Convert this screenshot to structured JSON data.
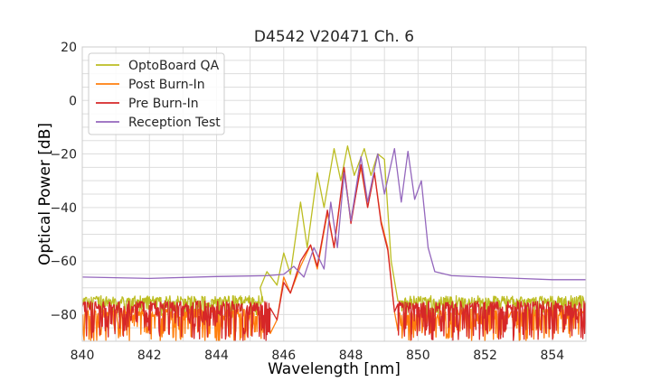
{
  "chart_data": {
    "type": "line",
    "title": "D4542 V20471 Ch. 6",
    "xlabel": "Wavelength [nm]",
    "ylabel": "Optical Power [dB]",
    "xlim": [
      840,
      855
    ],
    "ylim": [
      -90,
      20
    ],
    "xticks": [
      840,
      842,
      844,
      846,
      848,
      850,
      852,
      854
    ],
    "yticks": [
      20,
      0,
      -20,
      -40,
      -60,
      -80
    ],
    "xtick_labels": [
      "840",
      "842",
      "844",
      "846",
      "848",
      "850",
      "852",
      "854"
    ],
    "ytick_labels": [
      "20",
      "0",
      "−20",
      "−40",
      "−60",
      "−80"
    ],
    "grid": true,
    "legend_position": "top-left",
    "series": [
      {
        "name": "OptoBoard QA",
        "color": "#bcbd22",
        "noise_floor": [
          -81,
          -73
        ],
        "noise_range": [
          840,
          845.4
        ],
        "noise_after": [
          849.5,
          855
        ],
        "points": [
          [
            845.3,
            -70
          ],
          [
            845.5,
            -64
          ],
          [
            845.8,
            -69
          ],
          [
            846.0,
            -57
          ],
          [
            846.2,
            -65
          ],
          [
            846.5,
            -38
          ],
          [
            846.7,
            -55
          ],
          [
            847.0,
            -27
          ],
          [
            847.2,
            -40
          ],
          [
            847.5,
            -18
          ],
          [
            847.7,
            -30
          ],
          [
            847.9,
            -17
          ],
          [
            848.1,
            -28
          ],
          [
            848.4,
            -18
          ],
          [
            848.6,
            -28
          ],
          [
            848.8,
            -20
          ],
          [
            849.0,
            -22
          ],
          [
            849.2,
            -60
          ],
          [
            849.4,
            -75
          ]
        ]
      },
      {
        "name": "Post Burn-In",
        "color": "#ff7f0e",
        "noise_floor": [
          -90,
          -78
        ],
        "noise_range": [
          840,
          845.6
        ],
        "noise_after": [
          849.4,
          855
        ],
        "points": [
          [
            845.8,
            -82
          ],
          [
            846.0,
            -66
          ],
          [
            846.2,
            -72
          ],
          [
            846.5,
            -62
          ],
          [
            846.8,
            -54
          ],
          [
            847.0,
            -63
          ],
          [
            847.3,
            -42
          ],
          [
            847.5,
            -55
          ],
          [
            847.8,
            -26
          ],
          [
            848.0,
            -45
          ],
          [
            848.3,
            -25
          ],
          [
            848.5,
            -40
          ],
          [
            848.7,
            -27
          ],
          [
            848.9,
            -45
          ],
          [
            849.1,
            -55
          ],
          [
            849.3,
            -79
          ]
        ]
      },
      {
        "name": "Pre Burn-In",
        "color": "#d62728",
        "noise_floor": [
          -90,
          -75
        ],
        "noise_range": [
          840,
          845.6
        ],
        "noise_after": [
          849.4,
          855
        ],
        "points": [
          [
            845.8,
            -82
          ],
          [
            846.0,
            -68
          ],
          [
            846.2,
            -72
          ],
          [
            846.5,
            -60
          ],
          [
            846.8,
            -54
          ],
          [
            847.0,
            -62
          ],
          [
            847.3,
            -41
          ],
          [
            847.5,
            -55
          ],
          [
            847.8,
            -25
          ],
          [
            848.0,
            -46
          ],
          [
            848.3,
            -24
          ],
          [
            848.5,
            -40
          ],
          [
            848.7,
            -27
          ],
          [
            848.9,
            -46
          ],
          [
            849.1,
            -56
          ],
          [
            849.3,
            -79
          ]
        ]
      },
      {
        "name": "Reception Test",
        "color": "#9467bd",
        "points": [
          [
            840,
            -66
          ],
          [
            842,
            -66.5
          ],
          [
            844,
            -65.8
          ],
          [
            845.5,
            -65.5
          ],
          [
            846.0,
            -65
          ],
          [
            846.3,
            -62
          ],
          [
            846.6,
            -66
          ],
          [
            846.9,
            -55
          ],
          [
            847.2,
            -63
          ],
          [
            847.4,
            -38
          ],
          [
            847.6,
            -55
          ],
          [
            847.8,
            -27
          ],
          [
            848.0,
            -45
          ],
          [
            848.3,
            -21
          ],
          [
            848.5,
            -38
          ],
          [
            848.8,
            -20
          ],
          [
            849.0,
            -35
          ],
          [
            849.3,
            -18
          ],
          [
            849.5,
            -38
          ],
          [
            849.7,
            -19
          ],
          [
            849.9,
            -37
          ],
          [
            850.1,
            -30
          ],
          [
            850.3,
            -55
          ],
          [
            850.5,
            -64
          ],
          [
            851,
            -65.5
          ],
          [
            852,
            -66
          ],
          [
            853,
            -66.5
          ],
          [
            854,
            -67
          ],
          [
            855,
            -67
          ]
        ]
      }
    ]
  }
}
